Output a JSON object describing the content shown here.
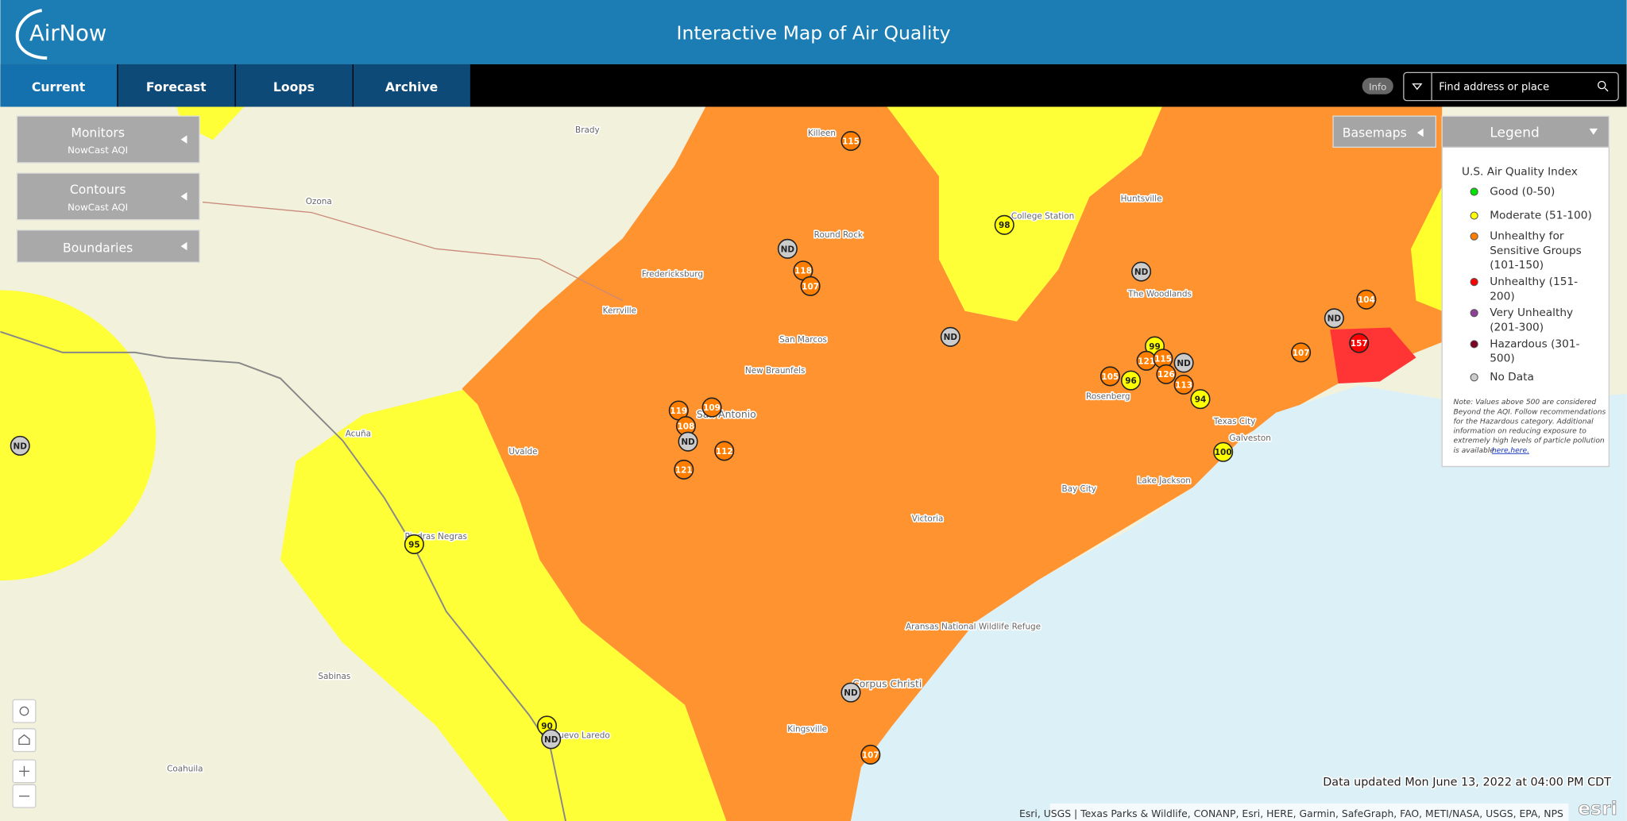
{
  "header": {
    "logo": "AirNow",
    "title": "Interactive Map of Air Quality"
  },
  "nav": {
    "tabs": [
      "Current",
      "Forecast",
      "Loops",
      "Archive"
    ],
    "info": "Info",
    "search_placeholder": "Find address or place"
  },
  "panels": [
    {
      "title": "Monitors",
      "subtitle": "NowCast AQI"
    },
    {
      "title": "Contours",
      "subtitle": "NowCast AQI"
    },
    {
      "title": "Boundaries"
    }
  ],
  "basemaps": "Basemaps",
  "legend": {
    "title": "Legend",
    "heading": "U.S. Air Quality Index",
    "items": [
      {
        "lines": [
          "Good (0-50)"
        ],
        "color": "#00e400"
      },
      {
        "lines": [
          "Moderate (51-100)"
        ],
        "color": "#ffff00"
      },
      {
        "lines": [
          "Unhealthy for",
          "Sensitive Groups",
          "(101-150)"
        ],
        "color": "#ff7e00"
      },
      {
        "lines": [
          "Unhealthy (151-",
          "200)"
        ],
        "color": "#ff0000"
      },
      {
        "lines": [
          "Very Unhealthy",
          "(201-300)"
        ],
        "color": "#8f3f97"
      },
      {
        "lines": [
          "Hazardous (301-",
          "500)"
        ],
        "color": "#7e0023"
      },
      {
        "lines": [
          "No Data"
        ],
        "color": "#cccccc"
      }
    ],
    "note": [
      "Note: Values above 500 are considered",
      "Beyond the AQI. Follow recommendations",
      "for the Hazardous category. Additional",
      "information on reducing exposure to",
      "extremely high levels of particle pollution",
      "is available"
    ],
    "note_links": [
      "here,",
      "here."
    ]
  },
  "markers": [
    {
      "label": "115",
      "color": "#ff7e00"
    },
    {
      "label": "98",
      "color": "#ffff00"
    },
    {
      "label": "ND",
      "color": "#cccccc"
    },
    {
      "label": "118",
      "color": "#ff7e00"
    },
    {
      "label": "107",
      "color": "#ff7e00"
    },
    {
      "label": "ND",
      "color": "#cccccc"
    },
    {
      "label": "ND",
      "color": "#cccccc"
    },
    {
      "label": "104",
      "color": "#ff7e00"
    },
    {
      "label": "ND",
      "color": "#cccccc"
    },
    {
      "label": "157",
      "color": "#ff0000"
    },
    {
      "label": "107",
      "color": "#ff7e00"
    },
    {
      "label": "99",
      "color": "#ffff00"
    },
    {
      "label": "121",
      "color": "#ff7e00"
    },
    {
      "label": "115",
      "color": "#ff7e00"
    },
    {
      "label": "ND",
      "color": "#cccccc"
    },
    {
      "label": "105",
      "color": "#ff7e00"
    },
    {
      "label": "96",
      "color": "#ffff00"
    },
    {
      "label": "126",
      "color": "#ff7e00"
    },
    {
      "label": "113",
      "color": "#ff7e00"
    },
    {
      "label": "94",
      "color": "#ffff00"
    },
    {
      "label": "100",
      "color": "#ffff00"
    },
    {
      "label": "119",
      "color": "#ff7e00"
    },
    {
      "label": "109",
      "color": "#ff7e00"
    },
    {
      "label": "108",
      "color": "#ff7e00"
    },
    {
      "label": "ND",
      "color": "#cccccc"
    },
    {
      "label": "112",
      "color": "#ff7e00"
    },
    {
      "label": "121",
      "color": "#ff7e00"
    },
    {
      "label": "ND",
      "color": "#cccccc"
    },
    {
      "label": "95",
      "color": "#ffff00"
    },
    {
      "label": "ND",
      "color": "#cccccc"
    },
    {
      "label": "90",
      "color": "#ffff00"
    },
    {
      "label": "ND",
      "color": "#cccccc"
    },
    {
      "label": "107",
      "color": "#ff7e00"
    }
  ],
  "places": [
    "Killeen",
    "Brady",
    "Ozona",
    "Round Rock",
    "Fredericksburg",
    "Kerrville",
    "San Marcos",
    "New Braunfels",
    "San Antonio",
    "Uvalde",
    "Acuña",
    "Piedras Negras",
    "Victoria",
    "Bay City",
    "Lake Jackson",
    "Texas City",
    "Galveston",
    "The Woodlands",
    "Huntsville",
    "College Station",
    "Rosenberg",
    "Corpus Christi",
    "Kingsville",
    "Nuevo Laredo",
    "Sabinas",
    "Coahuila",
    "Aransas National Wildlife Refuge"
  ],
  "data_updated": "Data updated Mon June 13, 2022 at 04:00 PM CDT",
  "attribution": "Esri, USGS | Texas Parks & Wildlife, CONANP, Esri, HERE, Garmin, SafeGraph, FAO, METI/NASA, USGS, EPA, NPS",
  "esri": "esri"
}
